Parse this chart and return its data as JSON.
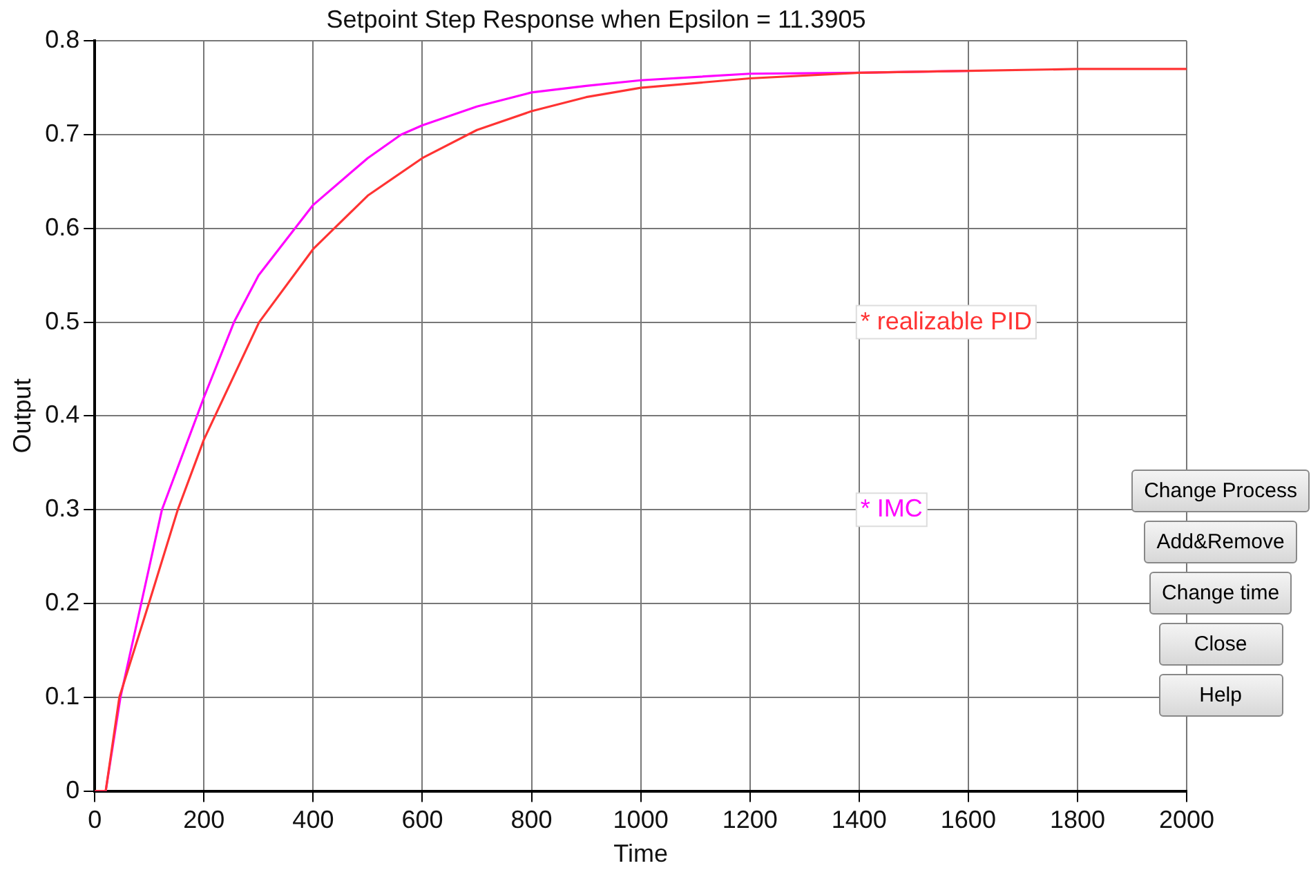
{
  "chart_data": {
    "type": "line",
    "title": "Setpoint Step Response when Epsilon = 11.3905",
    "xlabel": "Time",
    "ylabel": "Output",
    "xlim": [
      0,
      2000
    ],
    "xticks": [
      0,
      200,
      400,
      600,
      800,
      1000,
      1200,
      1400,
      1600,
      1800,
      2000
    ],
    "ylim": [
      0,
      0.8
    ],
    "yticks": [
      0,
      0.1,
      0.2,
      0.3,
      0.4,
      0.5,
      0.6,
      0.7,
      0.8
    ],
    "grid": true,
    "legend": "right",
    "marker": "none",
    "line_style": "solid",
    "series": [
      {
        "name": "* realizable PID",
        "color": "#ff3333",
        "x": [
          0,
          20,
          45,
          99,
          152,
          200,
          301,
          400,
          500,
          600,
          700,
          800,
          900,
          1000,
          1100,
          1200,
          1400,
          1600,
          1800,
          2000
        ],
        "values": [
          0,
          0,
          0.1,
          0.2,
          0.3,
          0.375,
          0.5,
          0.578,
          0.635,
          0.675,
          0.705,
          0.725,
          0.74,
          0.75,
          0.755,
          0.76,
          0.766,
          0.768,
          0.77,
          0.77
        ]
      },
      {
        "name": "* IMC",
        "color": "#ff00ff",
        "x": [
          0,
          20,
          47,
          85,
          123,
          200,
          255,
          300,
          400,
          500,
          561,
          600,
          700,
          800,
          900,
          1000,
          1200,
          1400,
          1600
        ],
        "values": [
          0,
          0,
          0.1,
          0.2,
          0.3,
          0.42,
          0.5,
          0.55,
          0.625,
          0.675,
          0.7,
          0.71,
          0.73,
          0.745,
          0.752,
          0.758,
          0.765,
          0.766,
          0.768
        ]
      }
    ],
    "annotations": [
      "Change Process",
      "Add&Remove",
      "Change time",
      "Close",
      "Help"
    ]
  }
}
